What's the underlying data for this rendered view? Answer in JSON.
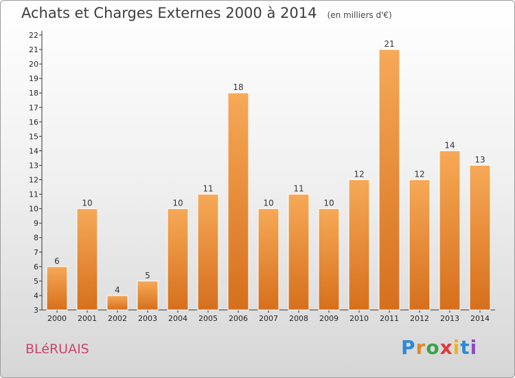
{
  "header": {
    "title": "Achats et Charges Externes 2000 à 2014",
    "unit": "(en milliers d'€)"
  },
  "footer": {
    "commune": "BLéRUAIS",
    "brand": [
      "P",
      "r",
      "o",
      "x",
      "i",
      "t",
      "i"
    ],
    "brand_colors": [
      "#2b8ad8",
      "#e0892a",
      "#3aa34a",
      "#e23a3a",
      "#f0b21c",
      "#2b8ad8",
      "#8a4bc4"
    ]
  },
  "chart_data": {
    "type": "bar",
    "categories": [
      "2000",
      "2001",
      "2002",
      "2003",
      "2004",
      "2005",
      "2006",
      "2007",
      "2008",
      "2009",
      "2010",
      "2011",
      "2012",
      "2013",
      "2014"
    ],
    "values": [
      6,
      10,
      4,
      5,
      10,
      11,
      18,
      10,
      11,
      10,
      12,
      21,
      12,
      14,
      13
    ],
    "ylim": [
      3,
      22
    ],
    "yticks": [
      3,
      4,
      5,
      6,
      7,
      8,
      9,
      10,
      11,
      12,
      13,
      14,
      15,
      16,
      17,
      18,
      19,
      20,
      21,
      22
    ],
    "grid": false,
    "bar_color": "#f0923a"
  }
}
